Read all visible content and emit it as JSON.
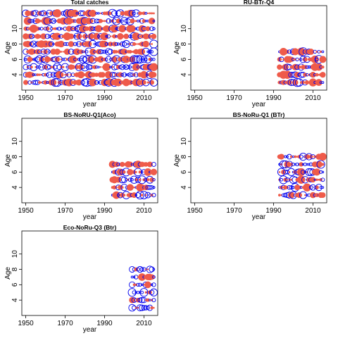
{
  "chart_data": [
    {
      "type": "scatter",
      "title": "Total catches",
      "xlabel": "year",
      "ylabel": "Age",
      "xlim": [
        1948,
        2017
      ],
      "ylim": [
        2,
        13
      ],
      "xticks": [
        1950,
        1970,
        1990,
        2010
      ],
      "yticks": [
        4,
        6,
        8,
        10
      ],
      "years": [
        1950,
        2015
      ],
      "ages": [
        3,
        12
      ],
      "series": [
        {
          "name": "",
          "color": "#ef5b4a",
          "style": "filled"
        },
        {
          "name": "",
          "color": "#0000ee",
          "style": "open"
        }
      ]
    },
    {
      "type": "scatter",
      "title": "RU-BTr-Q4",
      "xlabel": "year",
      "ylabel": "Age",
      "xlim": [
        1948,
        2017
      ],
      "ylim": [
        2,
        13
      ],
      "xticks": [
        1950,
        1970,
        1990,
        2010
      ],
      "yticks": [
        4,
        6,
        8,
        10
      ],
      "years": [
        1993,
        2015
      ],
      "ages": [
        3,
        7
      ],
      "series": [
        {
          "name": "",
          "color": "#ef5b4a",
          "style": "filled"
        },
        {
          "name": "",
          "color": "#0000ee",
          "style": "open"
        }
      ]
    },
    {
      "type": "scatter",
      "title": "BS-NoRU-Q1(Aco)",
      "xlabel": "year",
      "ylabel": "Age",
      "xlim": [
        1948,
        2017
      ],
      "ylim": [
        2,
        13
      ],
      "xticks": [
        1950,
        1970,
        1990,
        2010
      ],
      "yticks": [
        4,
        6,
        8,
        10
      ],
      "years": [
        1994,
        2015
      ],
      "ages": [
        3,
        7
      ],
      "series": [
        {
          "name": "",
          "color": "#ef5b4a",
          "style": "filled"
        },
        {
          "name": "",
          "color": "#0000ee",
          "style": "open"
        }
      ]
    },
    {
      "type": "scatter",
      "title": "BS-NoRu-Q1 (BTr)",
      "xlabel": "year",
      "ylabel": "Age",
      "xlim": [
        1948,
        2017
      ],
      "ylim": [
        2,
        13
      ],
      "xticks": [
        1950,
        1970,
        1990,
        2010
      ],
      "yticks": [
        4,
        6,
        8,
        10
      ],
      "years": [
        1993,
        2015
      ],
      "ages": [
        3,
        8
      ],
      "series": [
        {
          "name": "",
          "color": "#ef5b4a",
          "style": "filled"
        },
        {
          "name": "",
          "color": "#0000ee",
          "style": "open"
        }
      ]
    },
    {
      "type": "scatter",
      "title": "Eco-NoRu-Q3 (Btr)",
      "xlabel": "year",
      "ylabel": "Age",
      "xlim": [
        1948,
        2017
      ],
      "ylim": [
        2,
        13
      ],
      "xticks": [
        1950,
        1970,
        1990,
        2010
      ],
      "yticks": [
        4,
        6,
        8,
        10
      ],
      "years": [
        2004,
        2015
      ],
      "ages": [
        3,
        8
      ],
      "series": [
        {
          "name": "",
          "color": "#ef5b4a",
          "style": "filled"
        },
        {
          "name": "",
          "color": "#0000ee",
          "style": "open"
        }
      ]
    }
  ]
}
